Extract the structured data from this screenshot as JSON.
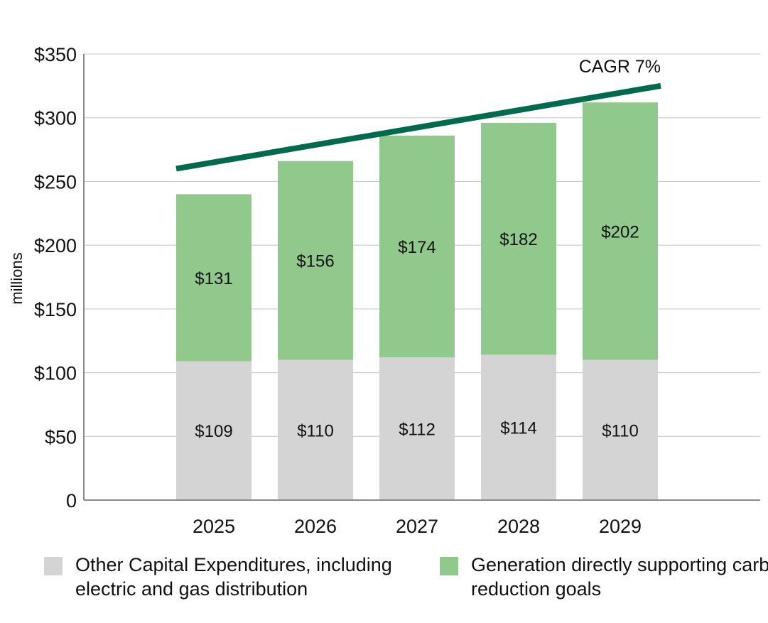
{
  "chart_data": {
    "type": "bar",
    "stacked": true,
    "categories": [
      "2025",
      "2026",
      "2027",
      "2028",
      "2029"
    ],
    "series": [
      {
        "name": "Other Capital Expenditures, including electric and gas distribution",
        "values": [
          109,
          110,
          112,
          114,
          110
        ],
        "color": "#d4d4d4",
        "labels": [
          "$109",
          "$110",
          "$112",
          "$114",
          "$110"
        ]
      },
      {
        "name": "Generation directly supporting carbon reduction goals",
        "values": [
          131,
          156,
          174,
          182,
          202
        ],
        "color": "#90c98b",
        "labels": [
          "$131",
          "$156",
          "$174",
          "$182",
          "$202"
        ]
      }
    ],
    "ylabel": "millions",
    "ylim": [
      0,
      350
    ],
    "yticks": [
      0,
      50,
      100,
      150,
      200,
      250,
      300,
      350
    ],
    "ytick_labels": [
      "0",
      "$50",
      "$100",
      "$150",
      "$200",
      "$250",
      "$300",
      "$350"
    ],
    "grid": true,
    "trend": {
      "label": "CAGR 7%",
      "from": 260,
      "to": 325,
      "color": "#006a4e"
    },
    "legend_position": "bottom"
  }
}
